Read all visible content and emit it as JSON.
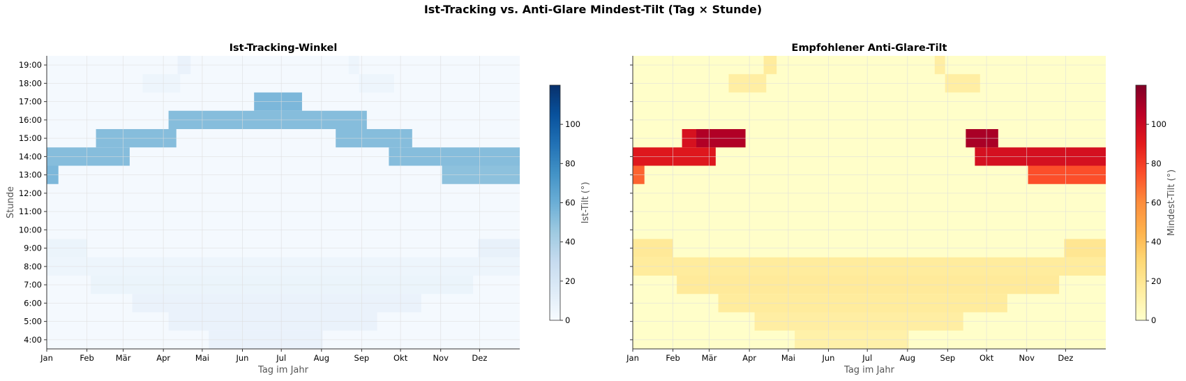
{
  "figure": {
    "title": "Ist-Tracking vs. Anti-Glare Mindest-Tilt (Tag × Stunde)"
  },
  "chart_data": [
    {
      "type": "heatmap",
      "title": "Ist-Tracking-Winkel",
      "xlabel": "Tag im Jahr",
      "ylabel": "Stunde",
      "x_ticks": [
        "Jan",
        "Feb",
        "Mär",
        "Apr",
        "Mai",
        "Jun",
        "Jul",
        "Aug",
        "Sep",
        "Okt",
        "Nov",
        "Dez"
      ],
      "y_ticks": [
        "4:00",
        "5:00",
        "6:00",
        "7:00",
        "8:00",
        "9:00",
        "10:00",
        "11:00",
        "12:00",
        "13:00",
        "14:00",
        "15:00",
        "16:00",
        "17:00",
        "18:00",
        "19:00"
      ],
      "xlim_days": [
        0,
        365
      ],
      "ylim_hours": [
        4,
        19
      ],
      "colormap": "Blues",
      "background_value": 2,
      "colorbar_label": "Ist-Tilt (°)",
      "colorbar_ticks": [
        0,
        20,
        40,
        60,
        80,
        100
      ],
      "clim": [
        0,
        120
      ],
      "regions": [
        {
          "hour": 4,
          "start_day": 125,
          "end_day": 213,
          "value": 8
        },
        {
          "hour": 5,
          "start_day": 94,
          "end_day": 255,
          "value": 8
        },
        {
          "hour": 6,
          "start_day": 66,
          "end_day": 289,
          "value": 8
        },
        {
          "hour": 7,
          "start_day": 34,
          "end_day": 329,
          "value": 7
        },
        {
          "hour": 8,
          "start_day": 0,
          "end_day": 365,
          "value": 6
        },
        {
          "hour": 9,
          "start_day": 0,
          "end_day": 31,
          "value": 7
        },
        {
          "hour": 9,
          "start_day": 333,
          "end_day": 365,
          "value": 9
        },
        {
          "hour": 13,
          "start_day": 0,
          "end_day": 9,
          "value": 55
        },
        {
          "hour": 13,
          "start_day": 305,
          "end_day": 365,
          "value": 50
        },
        {
          "hour": 14,
          "start_day": 0,
          "end_day": 64,
          "value": 52
        },
        {
          "hour": 14,
          "start_day": 264,
          "end_day": 365,
          "value": 52
        },
        {
          "hour": 15,
          "start_day": 38,
          "end_day": 100,
          "value": 52
        },
        {
          "hour": 15,
          "start_day": 223,
          "end_day": 282,
          "value": 52
        },
        {
          "hour": 16,
          "start_day": 94,
          "end_day": 247,
          "value": 52
        },
        {
          "hour": 17,
          "start_day": 160,
          "end_day": 197,
          "value": 55
        },
        {
          "hour": 18,
          "start_day": 74,
          "end_day": 103,
          "value": 6
        },
        {
          "hour": 18,
          "start_day": 241,
          "end_day": 268,
          "value": 6
        },
        {
          "hour": 19,
          "start_day": 101,
          "end_day": 111,
          "value": 8
        },
        {
          "hour": 19,
          "start_day": 233,
          "end_day": 241,
          "value": 6
        }
      ]
    },
    {
      "type": "heatmap",
      "title": "Empfohlener Anti-Glare-Tilt",
      "xlabel": "Tag im Jahr",
      "ylabel": "",
      "x_ticks": [
        "Jan",
        "Feb",
        "Mär",
        "Apr",
        "Mai",
        "Jun",
        "Jul",
        "Aug",
        "Sep",
        "Okt",
        "Nov",
        "Dez"
      ],
      "y_ticks": [],
      "xlim_days": [
        0,
        365
      ],
      "ylim_hours": [
        4,
        19
      ],
      "colormap": "YlOrRd",
      "background_value": 1,
      "colorbar_label": "Mindest-Tilt (°)",
      "colorbar_ticks": [
        0,
        20,
        40,
        60,
        80,
        100
      ],
      "clim": [
        0,
        120
      ],
      "regions": [
        {
          "hour": 4,
          "start_day": 125,
          "end_day": 213,
          "value": 12
        },
        {
          "hour": 5,
          "start_day": 94,
          "end_day": 255,
          "value": 14
        },
        {
          "hour": 6,
          "start_day": 66,
          "end_day": 289,
          "value": 16
        },
        {
          "hour": 7,
          "start_day": 34,
          "end_day": 329,
          "value": 17
        },
        {
          "hour": 8,
          "start_day": 0,
          "end_day": 365,
          "value": 16
        },
        {
          "hour": 9,
          "start_day": 0,
          "end_day": 31,
          "value": 18
        },
        {
          "hour": 9,
          "start_day": 333,
          "end_day": 365,
          "value": 20
        },
        {
          "hour": 13,
          "start_day": 0,
          "end_day": 9,
          "value": 70
        },
        {
          "hour": 13,
          "start_day": 305,
          "end_day": 365,
          "value": 75
        },
        {
          "hour": 14,
          "start_day": 0,
          "end_day": 64,
          "value": 92
        },
        {
          "hour": 14,
          "start_day": 264,
          "end_day": 365,
          "value": 96
        },
        {
          "hour": 15,
          "start_day": 38,
          "end_day": 49,
          "value": 95
        },
        {
          "hour": 15,
          "start_day": 49,
          "end_day": 87,
          "value": 108
        },
        {
          "hour": 15,
          "start_day": 257,
          "end_day": 282,
          "value": 110
        },
        {
          "hour": 18,
          "start_day": 74,
          "end_day": 103,
          "value": 14
        },
        {
          "hour": 18,
          "start_day": 241,
          "end_day": 268,
          "value": 14
        },
        {
          "hour": 19,
          "start_day": 101,
          "end_day": 111,
          "value": 16
        },
        {
          "hour": 19,
          "start_day": 233,
          "end_day": 241,
          "value": 14
        }
      ]
    }
  ]
}
